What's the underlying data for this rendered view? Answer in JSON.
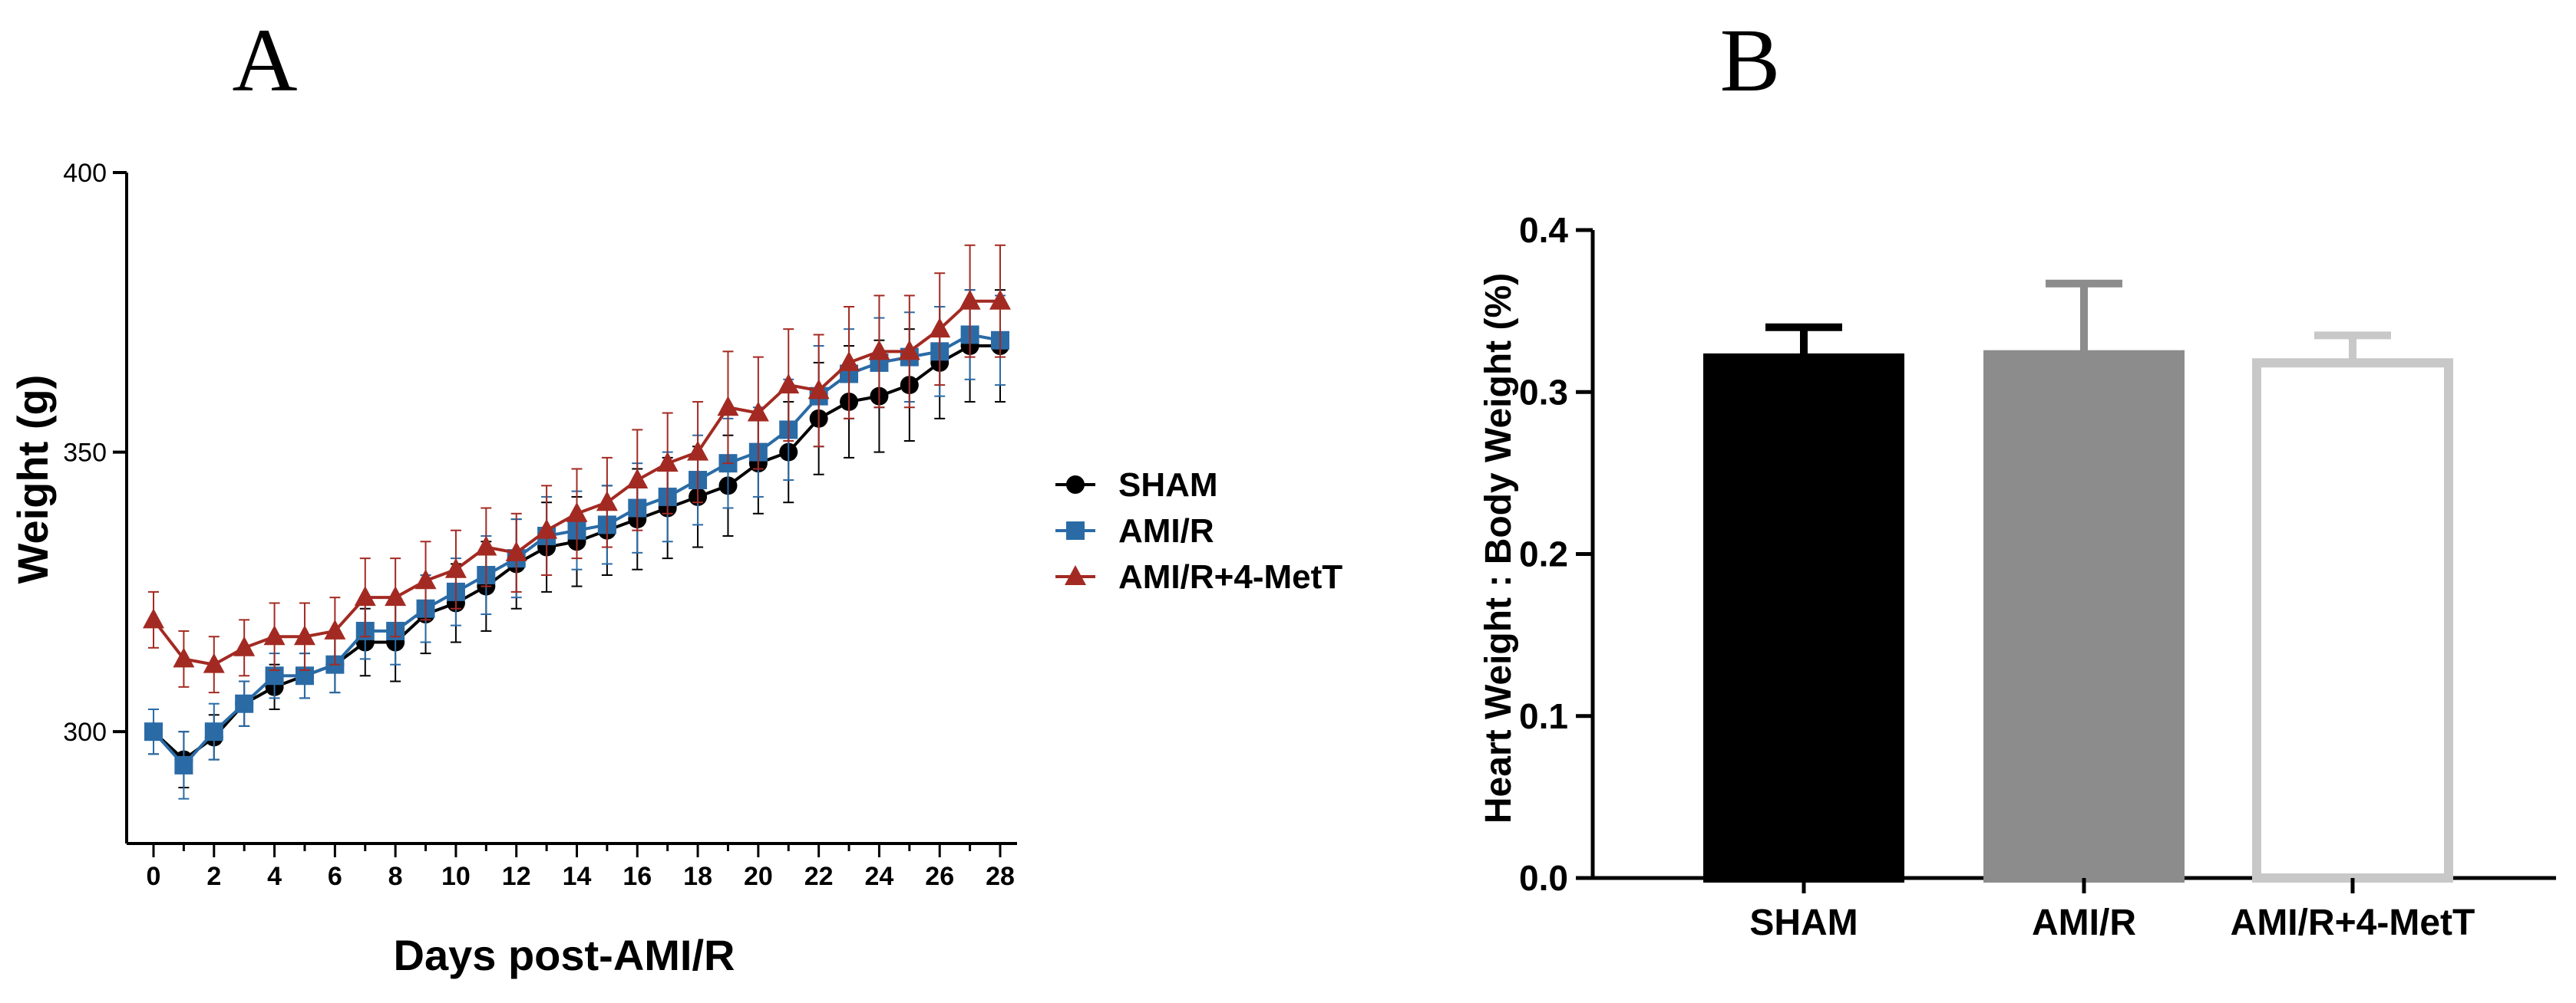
{
  "chart_data": [
    {
      "panel": "A",
      "type": "line",
      "title": "",
      "xlabel": "Days post-AMI/R",
      "ylabel": "Weight (g)",
      "xlim": [
        0,
        28
      ],
      "ylim": [
        280,
        400
      ],
      "yticks": [
        300,
        350,
        400
      ],
      "xticks": [
        0,
        2,
        4,
        6,
        8,
        10,
        12,
        14,
        16,
        18,
        20,
        22,
        24,
        26,
        28
      ],
      "grid": false,
      "legend": "right",
      "x": [
        0,
        1,
        2,
        3,
        4,
        5,
        6,
        7,
        8,
        9,
        10,
        11,
        12,
        13,
        14,
        15,
        16,
        17,
        18,
        19,
        20,
        21,
        22,
        23,
        24,
        25,
        26,
        27,
        28
      ],
      "series": [
        {
          "name": "SHAM",
          "color": "#000000",
          "marker": "circle",
          "values": [
            300,
            295,
            299,
            305,
            308,
            310,
            312,
            316,
            316,
            321,
            323,
            326,
            330,
            333,
            334,
            336,
            338,
            340,
            342,
            344,
            348,
            350,
            356,
            359,
            360,
            362,
            366,
            369,
            369
          ],
          "errors": [
            4,
            5,
            4,
            4,
            4,
            4,
            5,
            6,
            7,
            7,
            7,
            8,
            8,
            8,
            8,
            8,
            9,
            9,
            9,
            9,
            9,
            9,
            10,
            10,
            10,
            10,
            10,
            10,
            10
          ]
        },
        {
          "name": "AMI/R",
          "color": "#2a6ba6",
          "marker": "square",
          "values": [
            300,
            294,
            300,
            305,
            310,
            310,
            312,
            318,
            318,
            322,
            325,
            328,
            331,
            335,
            336,
            337,
            340,
            342,
            345,
            348,
            350,
            354,
            360,
            364,
            366,
            367,
            368,
            371,
            370
          ],
          "errors": [
            4,
            6,
            5,
            4,
            4,
            4,
            5,
            5,
            6,
            6,
            6,
            7,
            7,
            7,
            7,
            7,
            8,
            8,
            8,
            8,
            8,
            9,
            9,
            8,
            8,
            8,
            8,
            8,
            8
          ]
        },
        {
          "name": "AMI/R+4-MetT",
          "color": "#a32a22",
          "marker": "triangle",
          "values": [
            320,
            313,
            312,
            315,
            317,
            317,
            318,
            324,
            324,
            327,
            329,
            333,
            332,
            336,
            339,
            341,
            345,
            348,
            350,
            358,
            357,
            362,
            361,
            366,
            368,
            368,
            372,
            377,
            377
          ],
          "errors": [
            5,
            5,
            5,
            5,
            6,
            6,
            6,
            7,
            7,
            7,
            7,
            7,
            7,
            8,
            8,
            8,
            9,
            9,
            9,
            10,
            10,
            10,
            10,
            10,
            10,
            10,
            10,
            10,
            10
          ]
        }
      ]
    },
    {
      "panel": "B",
      "type": "bar",
      "title": "",
      "xlabel": "",
      "ylabel": "Heart Weight : Body  Weight (%)",
      "categories": [
        "SHAM",
        "AMI/R",
        "AMI/R+4-MetT"
      ],
      "values": [
        0.321,
        0.323,
        0.318
      ],
      "errors": [
        0.019,
        0.044,
        0.017
      ],
      "colors": [
        "#000000",
        "#8c8c8c",
        "#ffffff"
      ],
      "edge_colors": [
        "#000000",
        "#8c8c8c",
        "#c8c8c8"
      ],
      "ylim": [
        0.0,
        0.4
      ],
      "yticks": [
        "0.0",
        "0.1",
        "0.2",
        "0.3",
        "0.4"
      ],
      "grid": false
    }
  ]
}
